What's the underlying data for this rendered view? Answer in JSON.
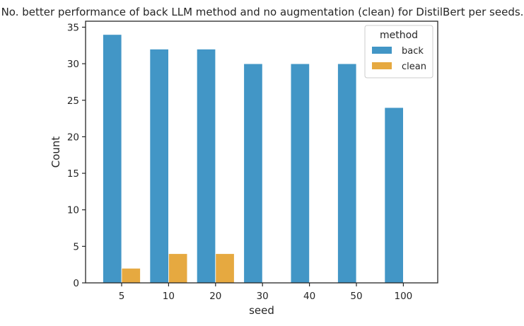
{
  "chart_data": {
    "type": "bar",
    "title": "No. better performance of back LLM method and no augmentation (clean) for DistilBert per seeds.",
    "xlabel": "seed",
    "ylabel": "Count",
    "categories": [
      "5",
      "10",
      "20",
      "30",
      "40",
      "50",
      "100"
    ],
    "series": [
      {
        "name": "back",
        "color": "#4296c6",
        "values": [
          34,
          32,
          32,
          30,
          30,
          30,
          24
        ]
      },
      {
        "name": "clean",
        "color": "#e6a940",
        "values": [
          2,
          4,
          4,
          0,
          0,
          0,
          0
        ]
      }
    ],
    "ylim": [
      0,
      36
    ],
    "yticks": [
      0,
      5,
      10,
      15,
      20,
      25,
      30,
      35
    ],
    "legend": {
      "title": "method",
      "placement": "top-right"
    },
    "grid": false
  }
}
